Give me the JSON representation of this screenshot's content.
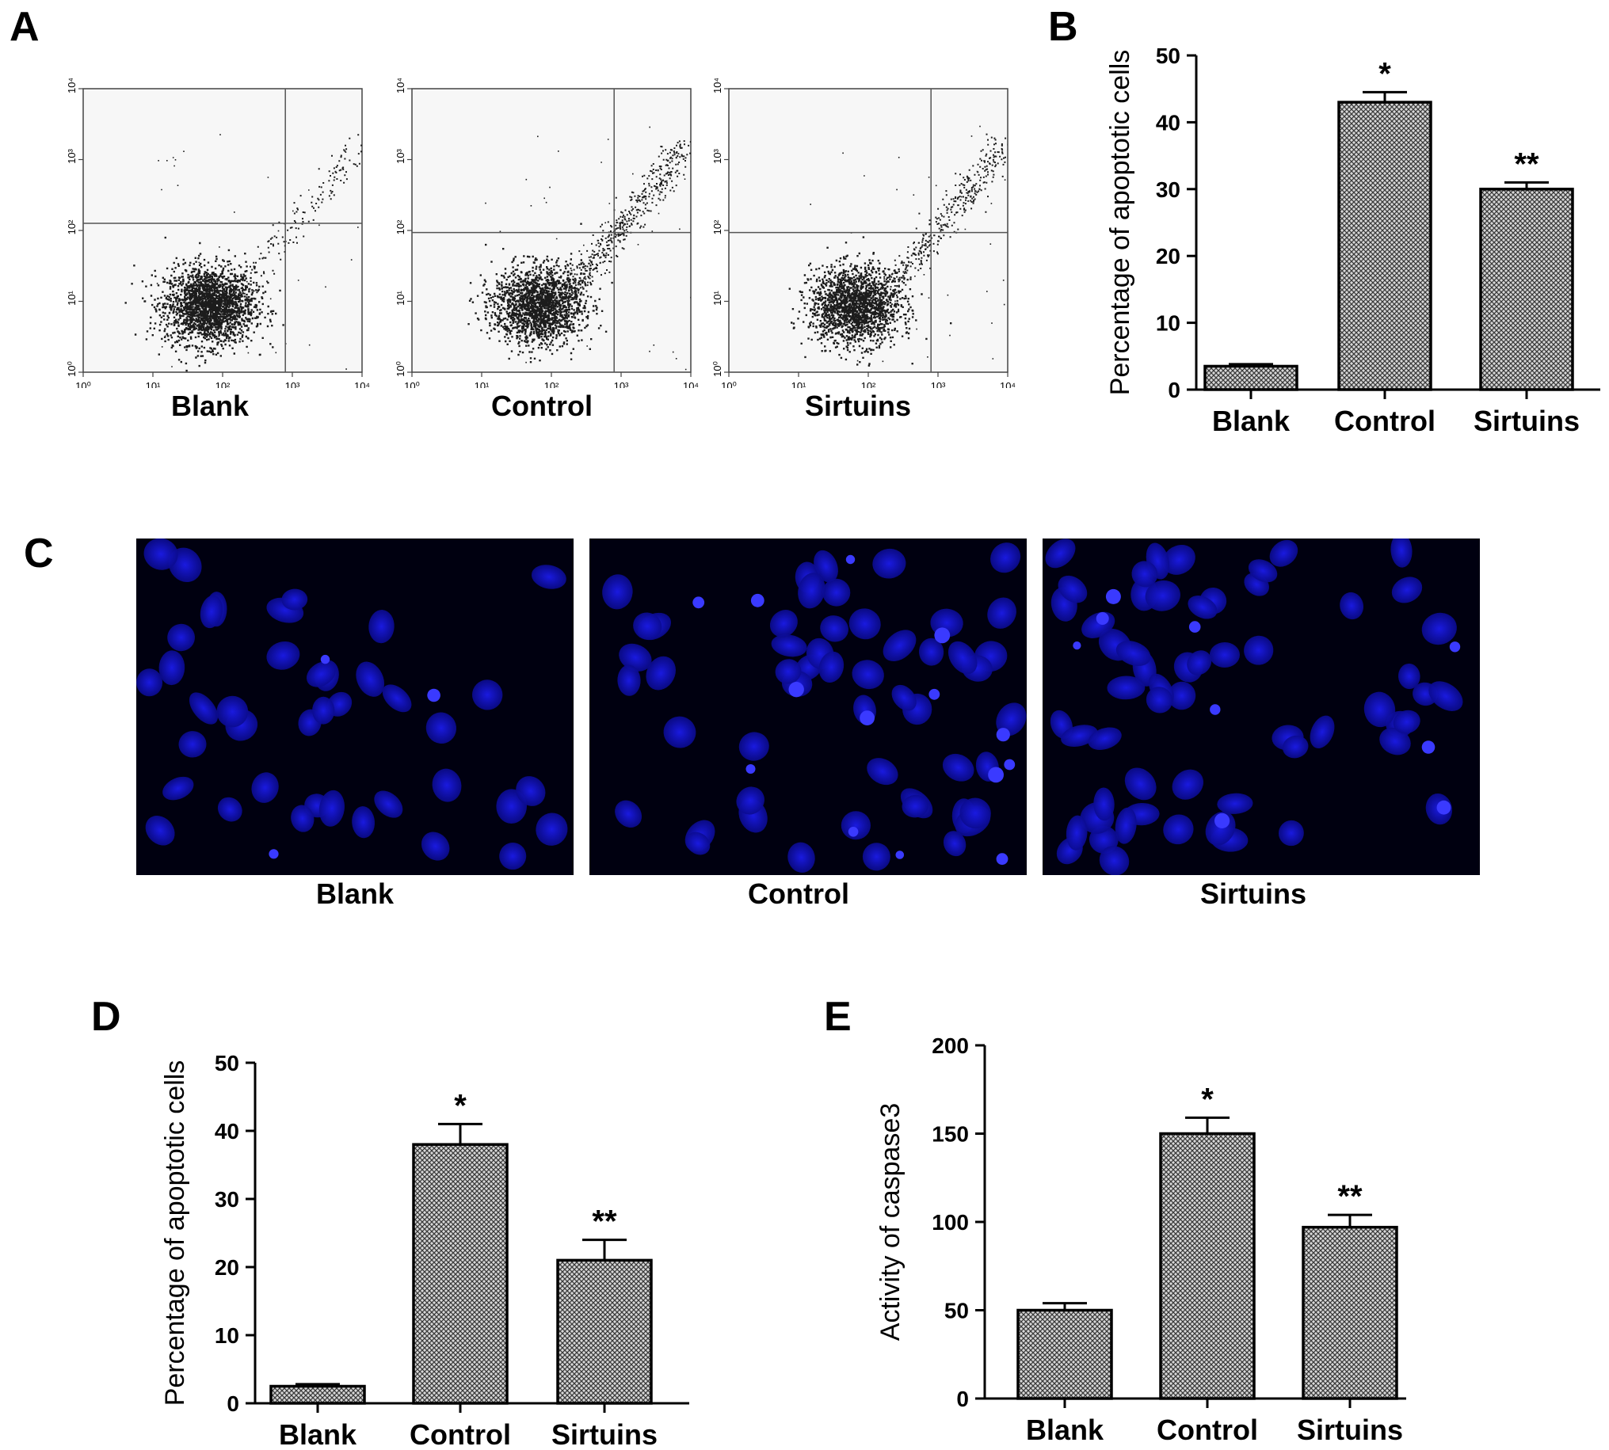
{
  "panels": {
    "a": "A",
    "b": "B",
    "c": "C",
    "d": "D",
    "e": "E"
  },
  "flow": {
    "panels": [
      {
        "label": "Blank",
        "gate_x": 2.9,
        "gate_y": 2.1
      },
      {
        "label": "Control",
        "gate_x": 2.9,
        "gate_y": 1.97
      },
      {
        "label": "Sirtuins",
        "gate_x": 2.9,
        "gate_y": 1.97
      }
    ],
    "x_ticks": [
      "10⁰",
      "10¹",
      "10²",
      "10³",
      "10⁴"
    ],
    "y_ticks": [
      "10⁰",
      "10¹",
      "10²",
      "10³",
      "10⁴"
    ]
  },
  "microscopy": {
    "labels": [
      "Blank",
      "Control",
      "Sirtuins"
    ],
    "nucleus_color": "#1a1ae0",
    "bright_color": "#3a3aff",
    "background_color": "#000010"
  },
  "chart_data": [
    {
      "id": "B",
      "type": "bar",
      "categories": [
        "Blank",
        "Control",
        "Sirtuins"
      ],
      "values": [
        3.5,
        43,
        30
      ],
      "errors": [
        0.3,
        1.5,
        1.0
      ],
      "significance": [
        "",
        "*",
        "**"
      ],
      "ylabel": "Percentage of apoptotic cells",
      "xlabel": "",
      "ylim": [
        0,
        50
      ],
      "yticks": [
        0,
        10,
        20,
        30,
        40,
        50
      ]
    },
    {
      "id": "D",
      "type": "bar",
      "categories": [
        "Blank",
        "Control",
        "Sirtuins"
      ],
      "values": [
        2.5,
        38,
        21
      ],
      "errors": [
        0.3,
        3,
        3
      ],
      "significance": [
        "",
        "*",
        "**"
      ],
      "ylabel": "Percentage of apoptotic cells",
      "xlabel": "",
      "ylim": [
        0,
        50
      ],
      "yticks": [
        0,
        10,
        20,
        30,
        40,
        50
      ]
    },
    {
      "id": "E",
      "type": "bar",
      "categories": [
        "Blank",
        "Control",
        "Sirtuins"
      ],
      "values": [
        50,
        150,
        97
      ],
      "errors": [
        4,
        9,
        7
      ],
      "significance": [
        "",
        "*",
        "**"
      ],
      "ylabel": "Activity of caspase3",
      "xlabel": "",
      "ylim": [
        0,
        200
      ],
      "yticks": [
        0,
        50,
        100,
        150,
        200
      ]
    }
  ]
}
